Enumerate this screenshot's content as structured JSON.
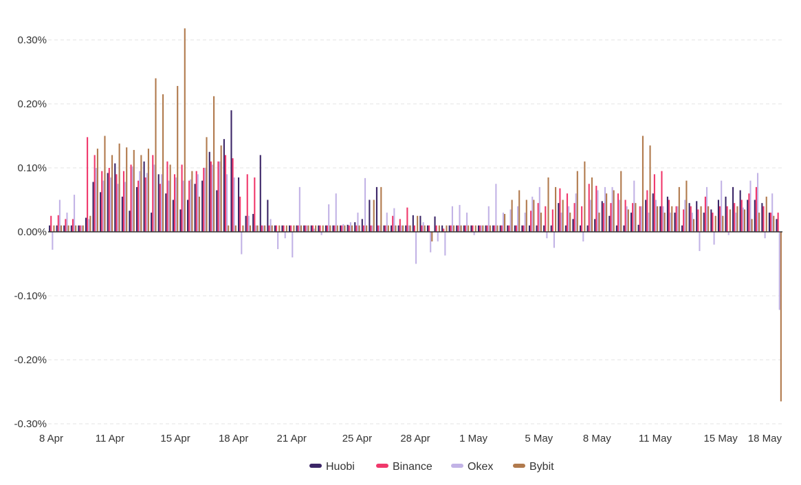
{
  "chart_data": {
    "type": "bar",
    "title": "",
    "xlabel": "",
    "ylabel": "",
    "ylim": [
      -0.3,
      0.3
    ],
    "y_ticks": [
      "0.30%",
      "0.20%",
      "0.10%",
      "0.00%",
      "-0.10%",
      "-0.20%",
      "-0.30%"
    ],
    "y_tick_values": [
      0.3,
      0.2,
      0.1,
      0.0,
      -0.1,
      -0.2,
      -0.3
    ],
    "x_ticks": [
      "8 Apr",
      "11 Apr",
      "15 Apr",
      "18 Apr",
      "21 Apr",
      "25 Apr",
      "28 Apr",
      "1 May",
      "5 May",
      "8 May",
      "11 May",
      "15 May",
      "18 May"
    ],
    "x_tick_periods": [
      0,
      8,
      17,
      25,
      33,
      42,
      50,
      58,
      67,
      75,
      83,
      92,
      100
    ],
    "period_count": 101,
    "period_hours": 8,
    "grid": true,
    "legend_position": "bottom",
    "series": [
      {
        "name": "Huobi",
        "color": "#3b2667",
        "values": [
          0.01,
          0.01,
          0.01,
          0.01,
          0.01,
          0.022,
          0.078,
          0.062,
          0.092,
          0.107,
          0.055,
          0.033,
          0.07,
          0.11,
          0.03,
          0.09,
          0.06,
          0.05,
          0.035,
          0.05,
          0.075,
          0.08,
          0.125,
          0.065,
          0.145,
          0.19,
          0.085,
          0.025,
          0.028,
          0.12,
          0.05,
          0.01,
          0.01,
          0.01,
          0.01,
          0.01,
          0.01,
          0.01,
          0.01,
          0.01,
          0.01,
          0.011,
          0.015,
          0.02,
          0.05,
          0.07,
          0.01,
          0.01,
          0.01,
          0.01,
          0.026,
          0.025,
          0.01,
          0.024,
          0.01,
          0.01,
          0.01,
          0.01,
          0.01,
          0.01,
          0.01,
          0.01,
          0.01,
          0.01,
          0.01,
          0.01,
          0.01,
          0.01,
          0.01,
          0.01,
          0.045,
          0.01,
          0.02,
          0.01,
          0.01,
          0.02,
          0.048,
          0.025,
          0.01,
          0.01,
          0.03,
          0.011,
          0.05,
          0.06,
          0.04,
          0.055,
          0.03,
          0.01,
          0.045,
          0.048,
          0.03,
          0.035,
          0.05,
          0.055,
          0.07,
          0.065,
          0.05,
          0.05,
          0.045,
          0.03,
          0.02
        ]
      },
      {
        "name": "Binance",
        "color": "#f0386b",
        "values": [
          0.025,
          0.026,
          0.02,
          0.02,
          0.01,
          0.148,
          0.12,
          0.095,
          0.1,
          0.09,
          0.095,
          0.105,
          0.08,
          0.085,
          0.12,
          0.075,
          0.11,
          0.09,
          0.105,
          0.08,
          0.095,
          0.1,
          0.11,
          0.11,
          0.12,
          0.115,
          0.055,
          0.09,
          0.085,
          0.01,
          0.01,
          0.01,
          0.01,
          0.01,
          0.01,
          0.01,
          0.01,
          0.01,
          0.01,
          0.01,
          0.01,
          0.01,
          0.01,
          0.01,
          0.01,
          0.01,
          0.01,
          0.025,
          0.02,
          0.038,
          0.01,
          0.01,
          0.01,
          0.01,
          0.005,
          0.01,
          0.01,
          0.01,
          0.01,
          0.01,
          0.01,
          0.01,
          0.01,
          0.01,
          0.01,
          0.01,
          0.033,
          0.045,
          0.04,
          0.035,
          0.068,
          0.06,
          0.045,
          0.04,
          0.075,
          0.072,
          0.045,
          0.045,
          0.06,
          0.05,
          0.045,
          0.04,
          0.065,
          0.09,
          0.095,
          0.05,
          0.04,
          0.035,
          0.04,
          0.035,
          0.055,
          0.03,
          0.04,
          0.04,
          0.045,
          0.05,
          0.06,
          0.07,
          0.04,
          0.03,
          0.03
        ]
      },
      {
        "name": "Okex",
        "color": "#c2b3e6",
        "values": [
          -0.028,
          0.05,
          0.03,
          0.058,
          0.01,
          0.02,
          0.1,
          0.08,
          0.085,
          0.075,
          0.078,
          0.102,
          0.095,
          0.092,
          0.105,
          0.09,
          0.08,
          0.085,
          0.08,
          0.082,
          0.09,
          0.1,
          0.105,
          0.11,
          0.09,
          0.085,
          -0.035,
          0.025,
          0.01,
          0.01,
          0.02,
          -0.027,
          -0.01,
          -0.04,
          0.07,
          0.01,
          0.005,
          -0.005,
          0.043,
          0.06,
          0.012,
          0.015,
          0.03,
          0.084,
          0.01,
          0.01,
          0.03,
          0.037,
          0.01,
          0.01,
          -0.05,
          0.015,
          -0.032,
          -0.015,
          -0.037,
          0.04,
          0.042,
          0.03,
          -0.005,
          0.01,
          0.04,
          0.075,
          0.03,
          0.035,
          0.04,
          0.03,
          0.055,
          0.07,
          -0.01,
          -0.025,
          0.03,
          0.04,
          0.06,
          -0.015,
          0.05,
          0.065,
          0.07,
          0.07,
          0.05,
          0.04,
          0.08,
          0.04,
          0.03,
          0.05,
          0.04,
          0.03,
          0.04,
          0.05,
          0.03,
          -0.03,
          0.07,
          -0.02,
          0.08,
          -0.005,
          0.03,
          0.038,
          0.08,
          0.092,
          -0.01,
          0.06,
          -0.122
        ]
      },
      {
        "name": "Bybit",
        "color": "#b17a4d",
        "values": [
          0.01,
          0.01,
          0.01,
          0.01,
          0.01,
          0.025,
          0.13,
          0.15,
          0.12,
          0.138,
          0.132,
          0.128,
          0.12,
          0.13,
          0.24,
          0.215,
          0.105,
          0.228,
          0.318,
          0.095,
          0.055,
          0.148,
          0.212,
          0.135,
          0.01,
          0.01,
          0.01,
          0.01,
          0.01,
          0.01,
          0.01,
          0.01,
          0.01,
          0.01,
          0.01,
          0.01,
          0.01,
          0.01,
          0.01,
          0.01,
          0.01,
          0.01,
          0.01,
          0.01,
          0.05,
          0.07,
          0.01,
          0.01,
          0.01,
          0.01,
          0.025,
          0.01,
          -0.015,
          0.01,
          0.01,
          0.01,
          0.01,
          0.01,
          0.01,
          0.01,
          0.01,
          0.01,
          0.028,
          0.05,
          0.065,
          0.05,
          0.05,
          0.03,
          0.085,
          0.07,
          0.05,
          0.03,
          0.095,
          0.11,
          0.085,
          0.03,
          0.06,
          0.065,
          0.095,
          0.035,
          0.045,
          0.15,
          0.135,
          0.04,
          0.03,
          0.04,
          0.07,
          0.08,
          0.02,
          0.04,
          0.04,
          0.025,
          0.025,
          0.035,
          0.04,
          0.035,
          0.02,
          0.03,
          0.055,
          0.025,
          -0.265
        ]
      }
    ]
  }
}
